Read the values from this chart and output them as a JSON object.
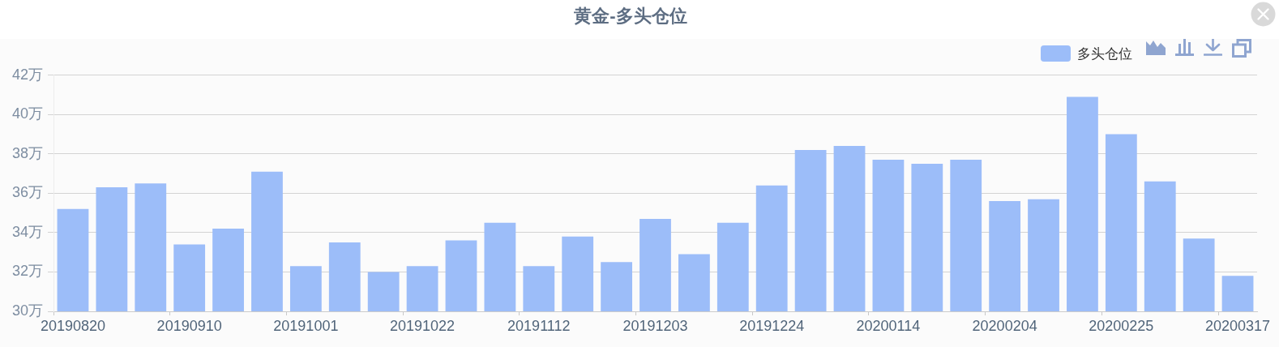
{
  "chart_data": {
    "type": "bar",
    "title": "黄金-多头仓位",
    "categories": [
      "20190820",
      null,
      null,
      "20190910",
      null,
      null,
      "20191001",
      null,
      null,
      "20191022",
      null,
      null,
      "20191112",
      null,
      null,
      "20191203",
      null,
      null,
      "20191224",
      null,
      null,
      "20200114",
      null,
      null,
      "20200204",
      null,
      null,
      "20200225",
      null,
      null,
      "20200317"
    ],
    "series": [
      {
        "name": "多头仓位",
        "color": "#9cbdf9",
        "values": [
          35.2,
          36.3,
          36.5,
          33.4,
          34.2,
          37.1,
          32.3,
          33.5,
          32.0,
          32.3,
          33.6,
          34.5,
          32.3,
          33.8,
          32.5,
          34.7,
          32.9,
          34.5,
          36.4,
          38.2,
          38.4,
          37.7,
          37.5,
          37.7,
          35.6,
          35.7,
          40.9,
          39.0,
          36.6,
          33.7,
          31.8
        ]
      }
    ],
    "ylim": [
      30,
      42
    ],
    "yticks": [
      {
        "value": 30,
        "label": "30万"
      },
      {
        "value": 32,
        "label": "32万"
      },
      {
        "value": 34,
        "label": "34万"
      },
      {
        "value": 36,
        "label": "36万"
      },
      {
        "value": 38,
        "label": "38万"
      },
      {
        "value": 40,
        "label": "40万"
      },
      {
        "value": 42,
        "label": "42万"
      }
    ],
    "grid": "y",
    "legend": "top right"
  }
}
